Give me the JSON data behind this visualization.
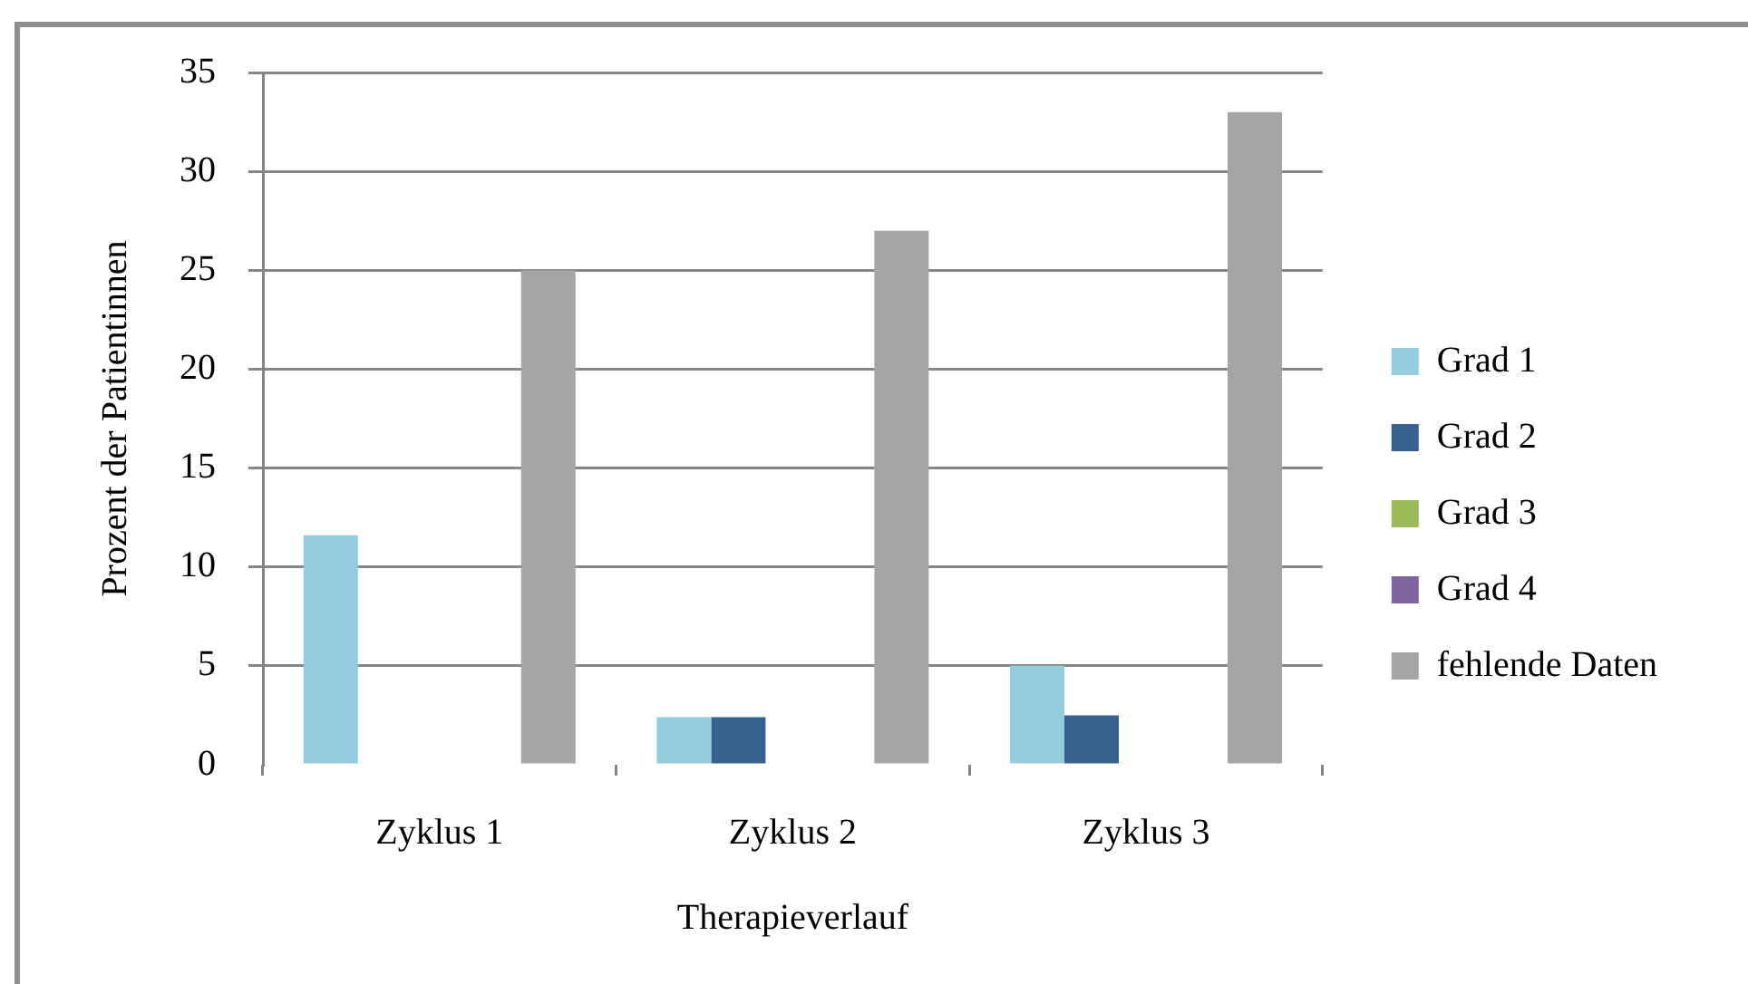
{
  "chart_data": {
    "type": "bar",
    "xlabel": "Therapieverlauf",
    "ylabel": "Prozent der Patientinnen",
    "categories": [
      "Zyklus 1",
      "Zyklus 2",
      "Zyklus 3"
    ],
    "series": [
      {
        "name": "Grad 1",
        "color": "#93cddd",
        "values": [
          11.6,
          2.4,
          5
        ]
      },
      {
        "name": "Grad 2",
        "color": "#35608f",
        "values": [
          0,
          2.4,
          2.5
        ]
      },
      {
        "name": "Grad 3",
        "color": "#9bbb59",
        "values": [
          0,
          0,
          0
        ]
      },
      {
        "name": "Grad 4",
        "color": "#8064a2",
        "values": [
          0,
          0,
          0
        ]
      },
      {
        "name": "fehlende Daten",
        "color": "#a5a5a5",
        "values": [
          25,
          27,
          33
        ]
      }
    ],
    "ylim": [
      0,
      35
    ],
    "yticks": [
      0,
      5,
      10,
      15,
      20,
      25,
      30,
      35
    ],
    "grid": "y",
    "legend": "right"
  }
}
